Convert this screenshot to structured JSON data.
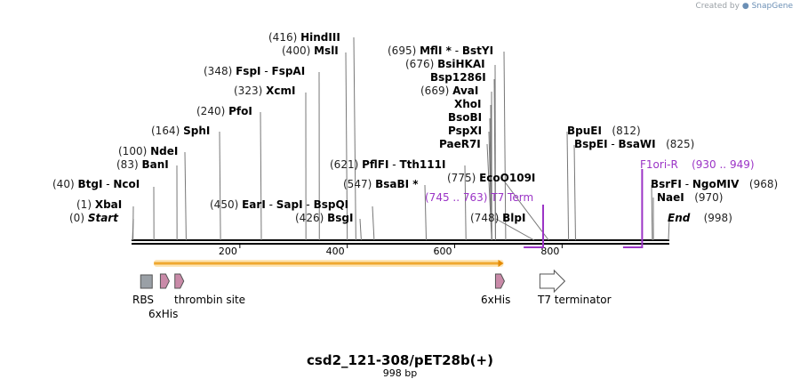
{
  "watermark": {
    "prefix": "Created by",
    "brand": "SnapGene"
  },
  "plasmid": {
    "name": "csd2_121-308/pET28b(+)",
    "length_label": "998 bp"
  },
  "colors": {
    "backbone": "#000000",
    "orf_fill": "#f0a830",
    "orf_stroke": "#e58a00",
    "rbs": "#9aa0a6",
    "his_tag": "#c98aa8",
    "terminator": "#ffffff",
    "primer": "#9b34c6",
    "tick_line": "#777777"
  },
  "scale": {
    "bp_start": 0,
    "bp_end": 998,
    "ticks": [
      "200",
      "400",
      "600",
      "800"
    ],
    "tick_bp": [
      200,
      400,
      600,
      800
    ]
  },
  "sites": [
    {
      "id": "start",
      "bp": 0,
      "pos": "(0)",
      "names": [
        "Start"
      ],
      "italic": true,
      "pos_first": true
    },
    {
      "id": "xbai",
      "bp": 1,
      "pos": "(1)",
      "names": [
        "XbaI"
      ],
      "pos_first": true
    },
    {
      "id": "btgi",
      "bp": 40,
      "pos": "(40)",
      "names": [
        "BtgI",
        "NcoI"
      ],
      "pos_first": true
    },
    {
      "id": "bani",
      "bp": 83,
      "pos": "(83)",
      "names": [
        "BanI"
      ],
      "pos_first": true
    },
    {
      "id": "ndei",
      "bp": 100,
      "pos": "(100)",
      "names": [
        "NdeI"
      ],
      "pos_first": true
    },
    {
      "id": "sphi",
      "bp": 164,
      "pos": "(164)",
      "names": [
        "SphI"
      ],
      "pos_first": true
    },
    {
      "id": "pfoi",
      "bp": 240,
      "pos": "(240)",
      "names": [
        "PfoI"
      ],
      "pos_first": true
    },
    {
      "id": "xcmi",
      "bp": 323,
      "pos": "(323)",
      "names": [
        "XcmI"
      ],
      "pos_first": true
    },
    {
      "id": "fspi",
      "bp": 348,
      "pos": "(348)",
      "names": [
        "FspI",
        "FspAI"
      ],
      "pos_first": true
    },
    {
      "id": "msli",
      "bp": 400,
      "pos": "(400)",
      "names": [
        "MslI"
      ],
      "pos_first": true
    },
    {
      "id": "hindiii",
      "bp": 416,
      "pos": "(416)",
      "names": [
        "HindIII"
      ],
      "pos_first": true
    },
    {
      "id": "eari",
      "bp": 450,
      "pos": "(450)",
      "names": [
        "EarI",
        "SapI",
        "BspQI"
      ],
      "pos_first": true
    },
    {
      "id": "bsgi",
      "bp": 426,
      "pos": "(426)",
      "names": [
        "BsgI"
      ],
      "pos_first": true
    },
    {
      "id": "bsabi",
      "bp": 547,
      "pos": "(547)",
      "names": [
        "BsaBI *"
      ],
      "pos_first": true
    },
    {
      "id": "pflfi",
      "bp": 621,
      "pos": "(621)",
      "names": [
        "PflFI",
        "Tth111I"
      ],
      "pos_first": true
    },
    {
      "id": "blpi",
      "bp": 748,
      "pos": "(748)",
      "names": [
        "BlpI"
      ],
      "pos_first": true
    },
    {
      "id": "ecoo109i",
      "bp": 775,
      "pos": "(775)",
      "names": [
        "EcoO109I"
      ],
      "pos_first": true
    },
    {
      "id": "paer7i",
      "bp": 669,
      "pos": "",
      "names": [
        "PaeR7I"
      ],
      "pos_first": true
    },
    {
      "id": "pspxi",
      "bp": 669,
      "pos": "",
      "names": [
        "PspXI"
      ],
      "pos_first": true
    },
    {
      "id": "bsobi",
      "bp": 669,
      "pos": "",
      "names": [
        "BsoBI"
      ],
      "pos_first": true
    },
    {
      "id": "xhoi",
      "bp": 669,
      "pos": "",
      "names": [
        "XhoI"
      ],
      "pos_first": true
    },
    {
      "id": "avai",
      "bp": 669,
      "pos": "(669)",
      "names": [
        "AvaI"
      ],
      "pos_first": true
    },
    {
      "id": "bsp1286i",
      "bp": 676,
      "pos": "",
      "names": [
        "Bsp1286I"
      ],
      "pos_first": true
    },
    {
      "id": "bsihkai",
      "bp": 676,
      "pos": "(676)",
      "names": [
        "BsiHKAI"
      ],
      "pos_first": true
    },
    {
      "id": "mfli",
      "bp": 695,
      "pos": "(695)",
      "names": [
        "MflI *",
        "BstYI"
      ],
      "pos_first": true
    },
    {
      "id": "bpuei",
      "bp": 812,
      "pos": "(812)",
      "names": [
        "BpuEI"
      ],
      "pos_first": false
    },
    {
      "id": "bspei",
      "bp": 825,
      "pos": "(825)",
      "names": [
        "BspEI",
        "BsaWI"
      ],
      "pos_first": false
    },
    {
      "id": "bsrfi",
      "bp": 968,
      "pos": "(968)",
      "names": [
        "BsrFI",
        "NgoMIV"
      ],
      "pos_first": false
    },
    {
      "id": "naei",
      "bp": 970,
      "pos": "(970)",
      "names": [
        "NaeI"
      ],
      "pos_first": false
    },
    {
      "id": "end",
      "bp": 998,
      "pos": "(998)",
      "names": [
        "End"
      ],
      "italic": true,
      "pos_first": false
    }
  ],
  "primers": [
    {
      "id": "t7term",
      "name": "T7 Term",
      "range": "(745 .. 763)",
      "bp_start": 745,
      "bp_end": 763
    },
    {
      "id": "f1ori",
      "name": "F1ori-R",
      "range": "(930 .. 949)",
      "bp_start": 930,
      "bp_end": 949
    }
  ],
  "features": [
    {
      "id": "orf",
      "type": "orf",
      "bp_start": 40,
      "bp_end": 691
    },
    {
      "id": "rbs",
      "type": "rbs",
      "name": "RBS",
      "bp_start": 12,
      "bp_end": 18
    },
    {
      "id": "his1",
      "type": "tag",
      "name": "6xHis",
      "bp_start": 52,
      "bp_end": 69
    },
    {
      "id": "thrombin",
      "type": "tag",
      "name": "thrombin site",
      "bp_start": 79,
      "bp_end": 96
    },
    {
      "id": "his2",
      "type": "tag",
      "name": "6xHis",
      "bp_start": 676,
      "bp_end": 693
    },
    {
      "id": "t7t",
      "type": "terminator",
      "name": "T7 terminator",
      "bp_start": 757,
      "bp_end": 804
    }
  ]
}
